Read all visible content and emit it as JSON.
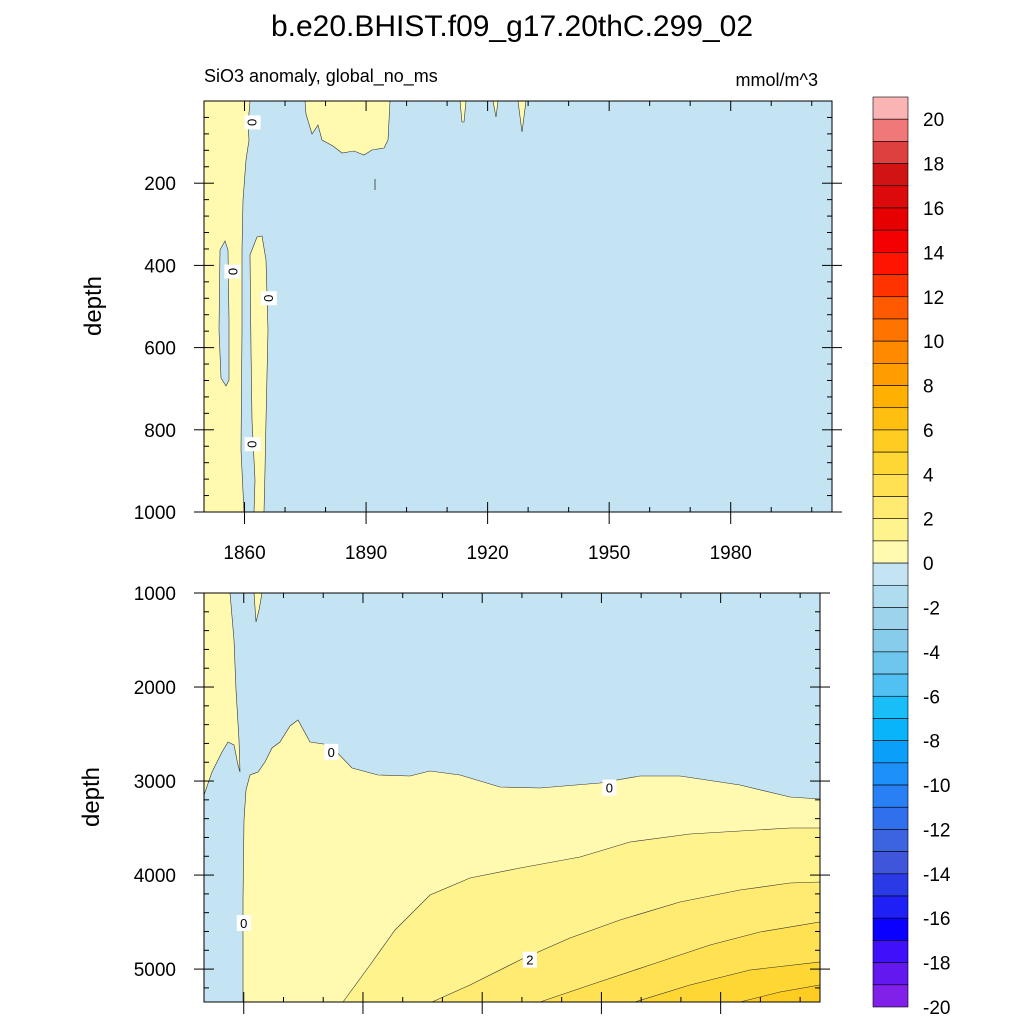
{
  "chart_data": {
    "type": "heatmap",
    "title": "b.e20.BHIST.f09_g17.20thC.299_02",
    "subtitle_left": "SiO3 anomaly, global_no_ms",
    "units": "mmol/m^3",
    "xlim": [
      1850,
      2005
    ],
    "x_ticks": [
      "1860",
      "1890",
      "1920",
      "1950",
      "1980"
    ],
    "x_tick_values": [
      1860,
      1890,
      1920,
      1950,
      1980
    ],
    "panels": [
      {
        "name": "upper",
        "ylabel": "depth",
        "ylim": [
          0,
          1000
        ],
        "y_ticks": [
          "200",
          "400",
          "600",
          "800",
          "1000"
        ],
        "y_tick_values": [
          200,
          400,
          600,
          800,
          1000
        ],
        "contour_labels": [
          {
            "text": "0",
            "x": 1862,
            "y": 52,
            "rotate": 90
          },
          {
            "text": "0",
            "x": 1857,
            "y": 415,
            "rotate": -90
          },
          {
            "text": "0",
            "x": 1866,
            "y": 480,
            "rotate": 90
          },
          {
            "text": "0",
            "x": 1862,
            "y": 835,
            "rotate": 90
          }
        ]
      },
      {
        "name": "lower",
        "ylabel": "depth",
        "ylim": [
          1000,
          5350
        ],
        "y_ticks": [
          "1000",
          "2000",
          "3000",
          "4000",
          "5000"
        ],
        "y_tick_values": [
          1000,
          2000,
          3000,
          4000,
          5000
        ],
        "contour_labels": [
          {
            "text": "0",
            "x": 1882,
            "y": 2690,
            "rotate": 0
          },
          {
            "text": "0",
            "x": 1952,
            "y": 3070,
            "rotate": 0
          },
          {
            "text": "0",
            "x": 1860,
            "y": 4510,
            "rotate": 0
          },
          {
            "text": "2",
            "x": 1932,
            "y": 4900,
            "rotate": 0
          }
        ]
      }
    ],
    "colorbar": {
      "labels": [
        "20",
        "18",
        "16",
        "14",
        "12",
        "10",
        "8",
        "6",
        "4",
        "2",
        "0",
        "-2",
        "-4",
        "-6",
        "-8",
        "-10",
        "-12",
        "-14",
        "-16",
        "-18",
        "-20"
      ],
      "colors": [
        "#fab4b4",
        "#f07878",
        "#de4040",
        "#d01414",
        "#dc0a0a",
        "#e60000",
        "#f50000",
        "#ff1400",
        "#ff3300",
        "#ff5a00",
        "#ff7300",
        "#ff8a00",
        "#ff9d00",
        "#ffb000",
        "#ffbf10",
        "#ffcc22",
        "#ffd735",
        "#ffe152",
        "#ffeb72",
        "#fff38e",
        "#fffab0",
        "#c4e4f4",
        "#b0dcf0",
        "#9dd4ec",
        "#87cceb",
        "#6ec6ee",
        "#51c0f2",
        "#19bef8",
        "#0ab4fa",
        "#0aa0fa",
        "#1e90fa",
        "#2880f4",
        "#3070ec",
        "#3c64e0",
        "#4056da",
        "#2a3ae6",
        "#1e20f5",
        "#0a00ff",
        "#4010fa",
        "#6418f0",
        "#8020e8"
      ]
    }
  }
}
